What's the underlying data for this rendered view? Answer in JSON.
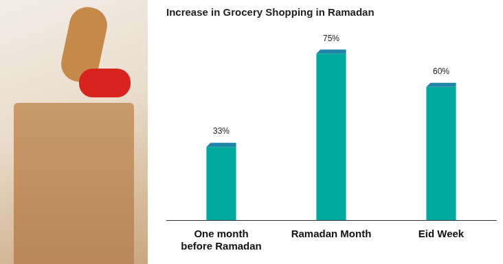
{
  "chart_data": {
    "type": "bar",
    "title": "Increase in Grocery Shopping in Ramadan",
    "categories": [
      "One month before Ramadan",
      "Ramadan Month",
      "Eid Week"
    ],
    "values": [
      33,
      75,
      60
    ],
    "value_labels": [
      "33%",
      "75%",
      "60%"
    ],
    "colors": [
      "#00a99d",
      "#00a99d",
      "#00a99d"
    ],
    "ylim": [
      0,
      80
    ],
    "grid": false,
    "data_labels": true,
    "tick_labels": "x"
  }
}
